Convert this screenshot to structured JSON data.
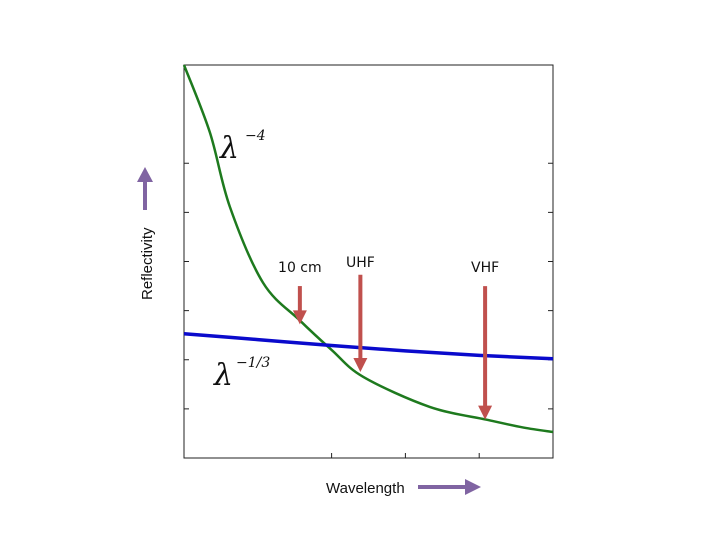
{
  "chart_data": {
    "type": "line",
    "title": "",
    "xlabel": "Wavelength",
    "ylabel": "Reflectivity",
    "xlim": [
      0,
      5
    ],
    "ylim": [
      0,
      8
    ],
    "xticks": [
      2,
      3,
      4
    ],
    "yticks": [
      1,
      2,
      3,
      4,
      5,
      6
    ],
    "tick_labels_shown": false,
    "grid": false,
    "series": [
      {
        "name": "λ^-4",
        "label_base": "λ",
        "label_exp": "−4",
        "color": "#1e7a1e",
        "x": [
          0,
          0.35,
          0.62,
          1.07,
          1.57,
          2.0,
          2.43,
          3.33,
          4.1,
          4.6,
          5.0
        ],
        "y": [
          8.0,
          6.63,
          5.12,
          3.57,
          2.8,
          2.2,
          1.65,
          1.04,
          0.78,
          0.62,
          0.53
        ]
      },
      {
        "name": "λ^-1/3",
        "label_base": "λ",
        "label_exp": "−1/3",
        "color": "#0a0acc",
        "x": [
          0,
          1,
          2,
          3,
          4,
          5
        ],
        "y": [
          2.53,
          2.41,
          2.29,
          2.18,
          2.09,
          2.02
        ]
      }
    ],
    "annotations": [
      {
        "text": "10 cm",
        "x": 1.57,
        "y_top": 3.5,
        "y_tip": 2.72
      },
      {
        "text": "UHF",
        "x": 2.39,
        "y_top": 3.73,
        "y_tip": 1.75
      },
      {
        "text": "VHF",
        "x": 4.08,
        "y_top": 3.5,
        "y_tip": 0.78
      }
    ],
    "arrow_color": "#c0504d",
    "axis_arrow_color": "#8064a2"
  }
}
